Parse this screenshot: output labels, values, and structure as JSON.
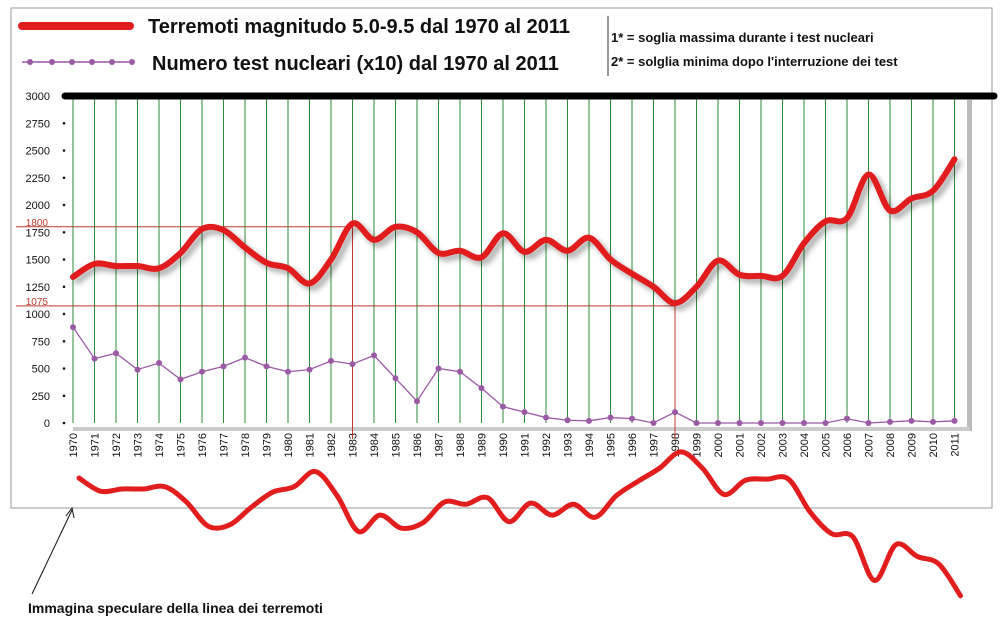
{
  "legend": {
    "earthquakes_label": "Terremoti magnitudo 5.0-9.5  dal 1970 al 2011",
    "tests_label": "Numero test nucleari  (x10)   dal 1970 al 2011",
    "note1": "1* = soglia massima durante i test nucleari",
    "note2": "2* = solglia minima dopo l'interruzione dei test"
  },
  "mirror_caption": "Immagina speculare della linea dei   terremoti",
  "colors": {
    "earthquakes": "#e11d1d",
    "tests": "#9b59a6",
    "grid_vertical": "#2e8b3a",
    "threshold": "#c0392b",
    "top_bar": "#000000"
  },
  "chart_data": {
    "type": "line",
    "x": [
      "1970",
      "1971",
      "1972",
      "1973",
      "1974",
      "1975",
      "1976",
      "1977",
      "1978",
      "1979",
      "1980",
      "1981",
      "1982",
      "1983",
      "1984",
      "1985",
      "1986",
      "1987",
      "1988",
      "1989",
      "1990",
      "1991",
      "1992",
      "1993",
      "1994",
      "1995",
      "1996",
      "1997",
      "1998",
      "1999",
      "2000",
      "2001",
      "2002",
      "2003",
      "2004",
      "2005",
      "2006",
      "2007",
      "2008",
      "2009",
      "2010",
      "2011"
    ],
    "series": [
      {
        "name": "Terremoti magnitudo 5.0-9.5  dal 1970 al 2011",
        "values": [
          1340,
          1460,
          1440,
          1440,
          1420,
          1560,
          1780,
          1770,
          1610,
          1470,
          1420,
          1280,
          1500,
          1830,
          1680,
          1800,
          1750,
          1560,
          1580,
          1520,
          1740,
          1570,
          1680,
          1580,
          1700,
          1500,
          1370,
          1250,
          1100,
          1250,
          1490,
          1360,
          1350,
          1350,
          1650,
          1850,
          1880,
          2280,
          1950,
          2060,
          2130,
          2420
        ]
      },
      {
        "name": "Numero test nucleari  (x10)   dal 1970 al 2011",
        "values": [
          880,
          590,
          640,
          490,
          550,
          400,
          470,
          520,
          600,
          520,
          470,
          490,
          570,
          540,
          620,
          410,
          200,
          500,
          470,
          320,
          150,
          100,
          50,
          25,
          20,
          50,
          40,
          0,
          100,
          0,
          0,
          0,
          0,
          0,
          0,
          0,
          40,
          0,
          10,
          20,
          10,
          20
        ]
      }
    ],
    "yticks": [
      "0",
      "250",
      "500",
      "750",
      "1000",
      "1250",
      "1500",
      "1750",
      "2000",
      "2250",
      "2500",
      "2750",
      "3000"
    ],
    "threshold_labels": [
      "1800",
      "1075"
    ],
    "thresholds": [
      {
        "value": 1800,
        "year": "1983"
      },
      {
        "value": 1075,
        "year": "1998"
      }
    ],
    "ylim": [
      0,
      3000
    ],
    "grid": "vertical",
    "legend": "top-left"
  }
}
